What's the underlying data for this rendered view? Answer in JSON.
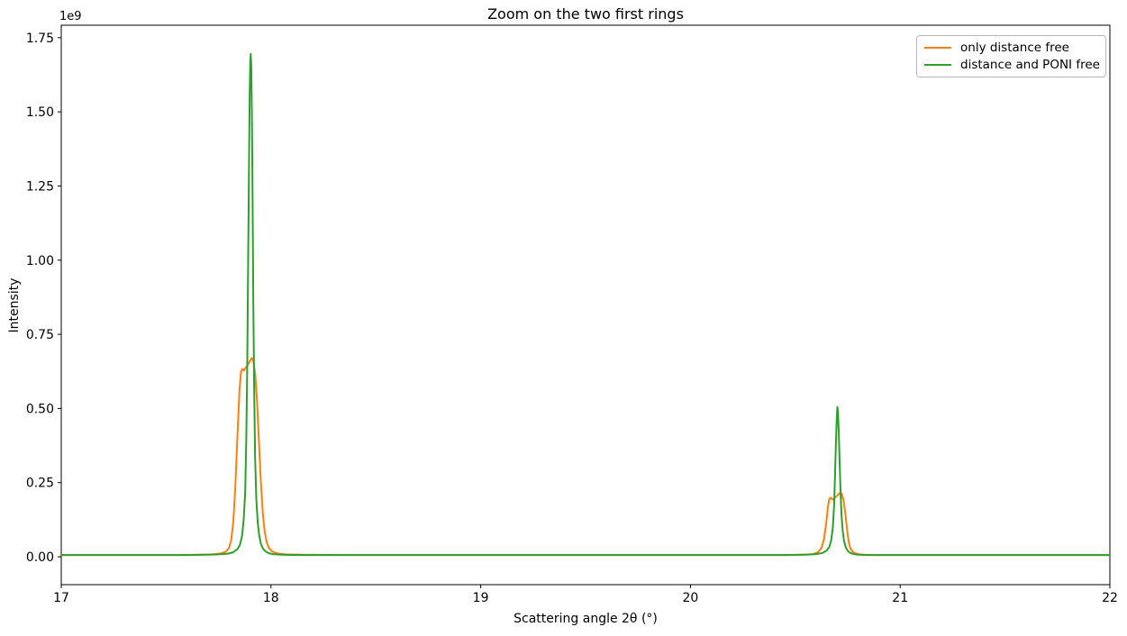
{
  "figure": {
    "background": "#ffffff"
  },
  "chart_data": {
    "type": "line",
    "title": "Zoom on the two first rings",
    "xlabel": "Scattering angle 2θ (°)",
    "ylabel": "Intensity",
    "y_offset_label": "1e9",
    "y_units": "1e9",
    "xlim": [
      17,
      22
    ],
    "ylim_1e9": [
      -0.094,
      1.792
    ],
    "x_ticks": [
      17,
      18,
      19,
      20,
      21,
      22
    ],
    "x_tick_labels": [
      "17",
      "18",
      "19",
      "20",
      "21",
      "22"
    ],
    "y_ticks_1e9": [
      0,
      0.25,
      0.5,
      0.75,
      1.0,
      1.25,
      1.5,
      1.75
    ],
    "y_tick_labels": [
      "0.00",
      "0.25",
      "0.50",
      "0.75",
      "1.00",
      "1.25",
      "1.50",
      "1.75"
    ],
    "grid": false,
    "legend": {
      "position": "upper right",
      "entries": [
        "only distance free",
        "distance and PONI free"
      ]
    },
    "series": [
      {
        "name": "only distance free",
        "color": "#ff7f0e",
        "peaks": [
          {
            "center_2theta": 17.86,
            "height_1e9": 0.633,
            "note": "ring 1 left shoulder"
          },
          {
            "center_2theta": 17.91,
            "height_1e9": 0.67,
            "note": "ring 1 maximum"
          },
          {
            "center_2theta": 20.665,
            "height_1e9": 0.199,
            "note": "ring 2 left shoulder"
          },
          {
            "center_2theta": 20.715,
            "height_1e9": 0.216,
            "note": "ring 2 maximum"
          }
        ],
        "points": [
          [
            17.0,
            0.006
          ],
          [
            17.15,
            0.006
          ],
          [
            17.3,
            0.006
          ],
          [
            17.45,
            0.006
          ],
          [
            17.55,
            0.006
          ],
          [
            17.65,
            0.007
          ],
          [
            17.72,
            0.008
          ],
          [
            17.76,
            0.011
          ],
          [
            17.785,
            0.017
          ],
          [
            17.8,
            0.03
          ],
          [
            17.81,
            0.055
          ],
          [
            17.82,
            0.115
          ],
          [
            17.83,
            0.235
          ],
          [
            17.84,
            0.41
          ],
          [
            17.85,
            0.565
          ],
          [
            17.857,
            0.622
          ],
          [
            17.863,
            0.633
          ],
          [
            17.871,
            0.628
          ],
          [
            17.88,
            0.638
          ],
          [
            17.89,
            0.648
          ],
          [
            17.9,
            0.66
          ],
          [
            17.908,
            0.67
          ],
          [
            17.916,
            0.662
          ],
          [
            17.925,
            0.615
          ],
          [
            17.934,
            0.52
          ],
          [
            17.943,
            0.385
          ],
          [
            17.952,
            0.25
          ],
          [
            17.961,
            0.148
          ],
          [
            17.97,
            0.085
          ],
          [
            17.98,
            0.048
          ],
          [
            17.99,
            0.03
          ],
          [
            18.005,
            0.018
          ],
          [
            18.03,
            0.011
          ],
          [
            18.07,
            0.008
          ],
          [
            18.15,
            0.007
          ],
          [
            18.35,
            0.006
          ],
          [
            18.7,
            0.006
          ],
          [
            19.0,
            0.006
          ],
          [
            19.35,
            0.006
          ],
          [
            19.7,
            0.006
          ],
          [
            20.0,
            0.006
          ],
          [
            20.25,
            0.006
          ],
          [
            20.45,
            0.006
          ],
          [
            20.54,
            0.007
          ],
          [
            20.585,
            0.009
          ],
          [
            20.61,
            0.016
          ],
          [
            20.625,
            0.03
          ],
          [
            20.637,
            0.06
          ],
          [
            20.647,
            0.11
          ],
          [
            20.655,
            0.165
          ],
          [
            20.662,
            0.195
          ],
          [
            20.668,
            0.199
          ],
          [
            20.676,
            0.193
          ],
          [
            20.685,
            0.196
          ],
          [
            20.695,
            0.203
          ],
          [
            20.705,
            0.21
          ],
          [
            20.714,
            0.216
          ],
          [
            20.722,
            0.212
          ],
          [
            20.73,
            0.192
          ],
          [
            20.738,
            0.15
          ],
          [
            20.746,
            0.096
          ],
          [
            20.754,
            0.053
          ],
          [
            20.762,
            0.03
          ],
          [
            20.772,
            0.018
          ],
          [
            20.785,
            0.012
          ],
          [
            20.8,
            0.009
          ],
          [
            20.83,
            0.007
          ],
          [
            20.88,
            0.006
          ],
          [
            21.0,
            0.006
          ],
          [
            21.25,
            0.006
          ],
          [
            21.5,
            0.006
          ],
          [
            21.75,
            0.006
          ],
          [
            22.0,
            0.006
          ]
        ]
      },
      {
        "name": "distance and PONI free",
        "color": "#2ca02c",
        "peaks": [
          {
            "center_2theta": 17.903,
            "height_1e9": 1.695,
            "note": "ring 1 maximum"
          },
          {
            "center_2theta": 20.7,
            "height_1e9": 0.505,
            "note": "ring 2 maximum"
          }
        ],
        "points": [
          [
            17.0,
            0.006
          ],
          [
            17.15,
            0.006
          ],
          [
            17.3,
            0.006
          ],
          [
            17.45,
            0.006
          ],
          [
            17.6,
            0.006
          ],
          [
            17.7,
            0.007
          ],
          [
            17.75,
            0.008
          ],
          [
            17.79,
            0.01
          ],
          [
            17.82,
            0.015
          ],
          [
            17.84,
            0.026
          ],
          [
            17.852,
            0.04
          ],
          [
            17.862,
            0.07
          ],
          [
            17.87,
            0.125
          ],
          [
            17.877,
            0.22
          ],
          [
            17.8825,
            0.4
          ],
          [
            17.887,
            0.66
          ],
          [
            17.891,
            0.98
          ],
          [
            17.895,
            1.32
          ],
          [
            17.8985,
            1.57
          ],
          [
            17.901,
            1.672
          ],
          [
            17.9035,
            1.695
          ],
          [
            17.906,
            1.655
          ],
          [
            17.909,
            1.5
          ],
          [
            17.9125,
            1.2
          ],
          [
            17.916,
            0.85
          ],
          [
            17.92,
            0.55
          ],
          [
            17.9245,
            0.33
          ],
          [
            17.93,
            0.195
          ],
          [
            17.937,
            0.115
          ],
          [
            17.944,
            0.07
          ],
          [
            17.952,
            0.044
          ],
          [
            17.962,
            0.027
          ],
          [
            17.974,
            0.018
          ],
          [
            17.99,
            0.012
          ],
          [
            18.01,
            0.009
          ],
          [
            18.05,
            0.007
          ],
          [
            18.12,
            0.006
          ],
          [
            18.35,
            0.006
          ],
          [
            18.7,
            0.006
          ],
          [
            19.0,
            0.006
          ],
          [
            19.35,
            0.006
          ],
          [
            19.7,
            0.006
          ],
          [
            20.0,
            0.006
          ],
          [
            20.25,
            0.006
          ],
          [
            20.45,
            0.006
          ],
          [
            20.55,
            0.007
          ],
          [
            20.6,
            0.009
          ],
          [
            20.63,
            0.013
          ],
          [
            20.65,
            0.021
          ],
          [
            20.663,
            0.034
          ],
          [
            20.672,
            0.058
          ],
          [
            20.679,
            0.1
          ],
          [
            20.685,
            0.175
          ],
          [
            20.69,
            0.285
          ],
          [
            20.694,
            0.395
          ],
          [
            20.6975,
            0.465
          ],
          [
            20.7005,
            0.505
          ],
          [
            20.7035,
            0.487
          ],
          [
            20.707,
            0.425
          ],
          [
            20.711,
            0.33
          ],
          [
            20.7155,
            0.225
          ],
          [
            20.72,
            0.145
          ],
          [
            20.726,
            0.088
          ],
          [
            20.733,
            0.052
          ],
          [
            20.741,
            0.031
          ],
          [
            20.75,
            0.02
          ],
          [
            20.762,
            0.013
          ],
          [
            20.778,
            0.009
          ],
          [
            20.8,
            0.007
          ],
          [
            20.85,
            0.006
          ],
          [
            21.0,
            0.006
          ],
          [
            21.25,
            0.006
          ],
          [
            21.5,
            0.006
          ],
          [
            21.75,
            0.006
          ],
          [
            22.0,
            0.006
          ]
        ]
      }
    ]
  }
}
